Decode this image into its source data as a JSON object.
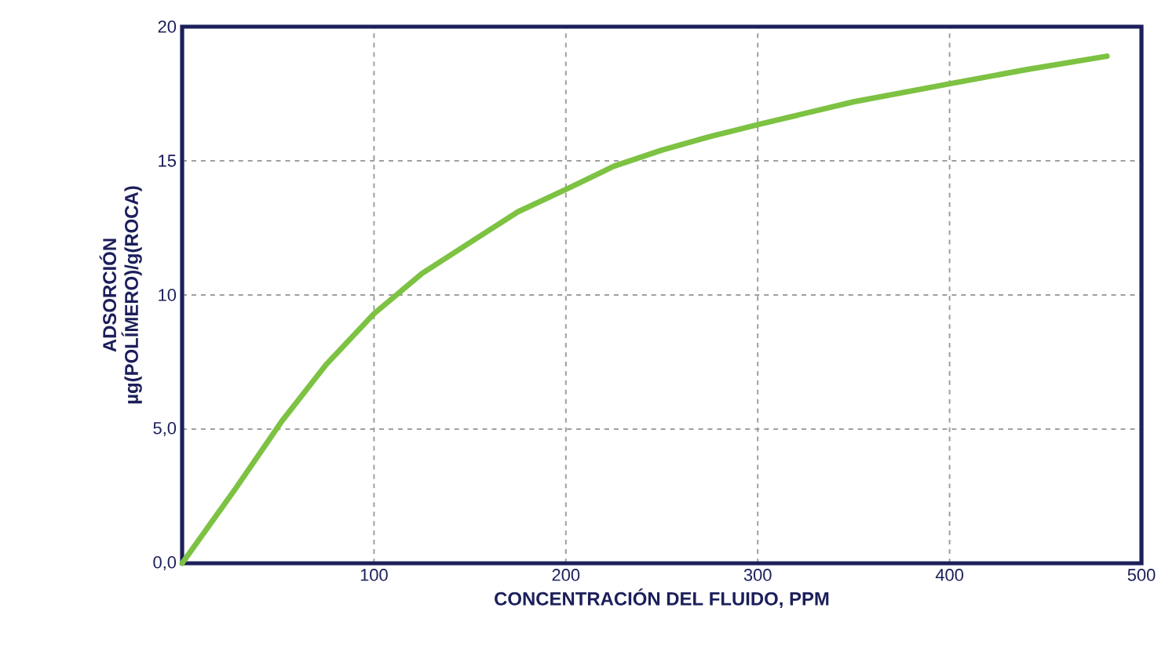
{
  "chart_data": {
    "type": "line",
    "xlabel": "CONCENTRACIÓN DEL FLUIDO, PPM",
    "ylabel": "ADSORCIÓN µg(POLÍMERO)/g(ROCA)",
    "series": [
      {
        "color": "#7dc242",
        "x": [
          0,
          14,
          28,
          52,
          75,
          100,
          125,
          151,
          175,
          202,
          225,
          250,
          275,
          303,
          350,
          402,
          440,
          482
        ],
        "values": [
          0,
          1.4,
          2.8,
          5.3,
          7.4,
          9.3,
          10.8,
          12.0,
          13.1,
          14.0,
          14.8,
          15.4,
          15.9,
          16.4,
          17.2,
          17.9,
          18.4,
          18.9
        ]
      }
    ],
    "xlim": [
      0,
      500
    ],
    "ylim": [
      0,
      20
    ],
    "xticks": [
      100,
      200,
      300,
      400,
      500
    ],
    "yticks": [
      {
        "value": 0,
        "label": "0,0"
      },
      {
        "value": 5,
        "label": "5,0"
      },
      10,
      15,
      20
    ],
    "grid": true,
    "marker": "none",
    "line_style": "solid"
  }
}
